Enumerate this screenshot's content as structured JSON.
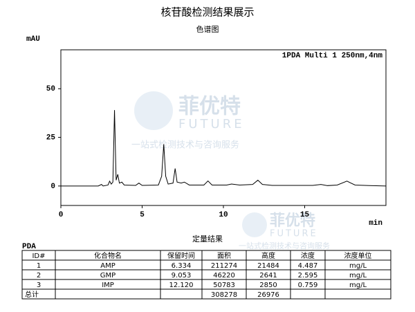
{
  "chart_data": {
    "type": "line",
    "title": "核苷酸检测结果展示",
    "subtitle": "色谱图",
    "x_label": "min",
    "y_label": "mAU",
    "annotation": "1PDA Multi 1 250nm,4nm",
    "x": [
      0,
      2.3,
      2.5,
      2.6,
      2.9,
      3.0,
      3.1,
      3.2,
      3.3,
      3.4,
      3.5,
      3.6,
      3.75,
      3.9,
      4.6,
      4.8,
      5.0,
      6.0,
      6.2,
      6.33,
      6.45,
      6.6,
      6.9,
      7.03,
      7.15,
      7.4,
      7.6,
      7.9,
      8.8,
      9.05,
      9.3,
      10.2,
      10.5,
      11.0,
      11.8,
      12.12,
      12.4,
      13.0,
      15.5,
      16.0,
      16.4,
      17.0,
      17.6,
      18.1,
      19.0,
      20.0
    ],
    "values": [
      0,
      0,
      0.8,
      0,
      0.5,
      2.5,
      1,
      2,
      39,
      3,
      6,
      1.5,
      2,
      0.5,
      0.3,
      1.5,
      0.3,
      0.5,
      5,
      21.5,
      5,
      1,
      1.5,
      9,
      2,
      1.5,
      2,
      0.5,
      0.5,
      2.6,
      0.5,
      0.5,
      1,
      0.5,
      0.8,
      3,
      0.8,
      0.3,
      0.3,
      0.8,
      0.2,
      0.5,
      2.5,
      0.5,
      0.2,
      0
    ],
    "color": "#000000",
    "xlim": [
      0,
      20
    ],
    "xticks": [
      0,
      5,
      10,
      15
    ],
    "ylim": [
      -10,
      70
    ],
    "yticks": [
      0,
      25,
      50
    ]
  },
  "watermark": {
    "brand": "菲优特",
    "brand_en": "FUTURE",
    "slogan": "一站式检测技术与咨询服务"
  },
  "table": {
    "title": "定量结果",
    "detector": "PDA",
    "headers": [
      "ID#",
      "化合物名",
      "保留时间",
      "面积",
      "高度",
      "浓度",
      "浓度单位"
    ],
    "rows": [
      [
        "1",
        "AMP",
        "6.334",
        "211274",
        "21484",
        "4.487",
        "mg/L"
      ],
      [
        "2",
        "GMP",
        "9.053",
        "46220",
        "2641",
        "2.595",
        "mg/L"
      ],
      [
        "3",
        "IMP",
        "12.120",
        "50783",
        "2850",
        "0.759",
        "mg/L"
      ]
    ],
    "total": {
      "label": "总计",
      "area": "308278",
      "height": "26976"
    }
  }
}
